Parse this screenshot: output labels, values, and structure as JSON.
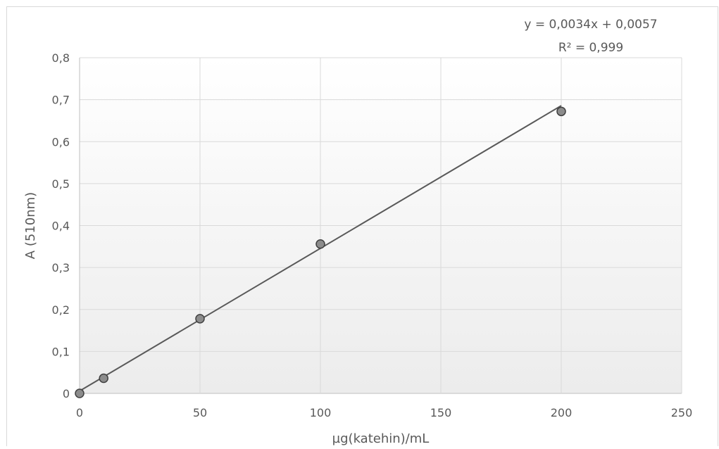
{
  "chart_data": {
    "type": "scatter",
    "xlabel": "µg(katehin)/mL",
    "ylabel": "A (510nm)",
    "xlim": [
      0,
      250
    ],
    "ylim": [
      0,
      0.8
    ],
    "xticks": [
      0,
      50,
      100,
      150,
      200,
      250
    ],
    "yticks": [
      0,
      0.1,
      0.2,
      0.3,
      0.4,
      0.5,
      0.6,
      0.7,
      0.8
    ],
    "xtick_labels": [
      "0",
      "50",
      "100",
      "150",
      "200",
      "250"
    ],
    "ytick_labels": [
      "0",
      "0,1",
      "0,2",
      "0,3",
      "0,4",
      "0,5",
      "0,6",
      "0,7",
      "0,8"
    ],
    "grid": true,
    "series": [
      {
        "x": [
          0,
          10,
          50,
          100,
          200
        ],
        "y": [
          0,
          0.036,
          0.178,
          0.356,
          0.672
        ],
        "marker_color": "#8c8c8c"
      }
    ],
    "trendline": {
      "type": "linear",
      "slope": 0.0034,
      "intercept": 0.0057,
      "x_range": [
        0,
        200
      ],
      "color": "#595959",
      "equation_label": "y = 0,0034x + 0,0057",
      "r2_label": "R² = 0,999"
    }
  }
}
